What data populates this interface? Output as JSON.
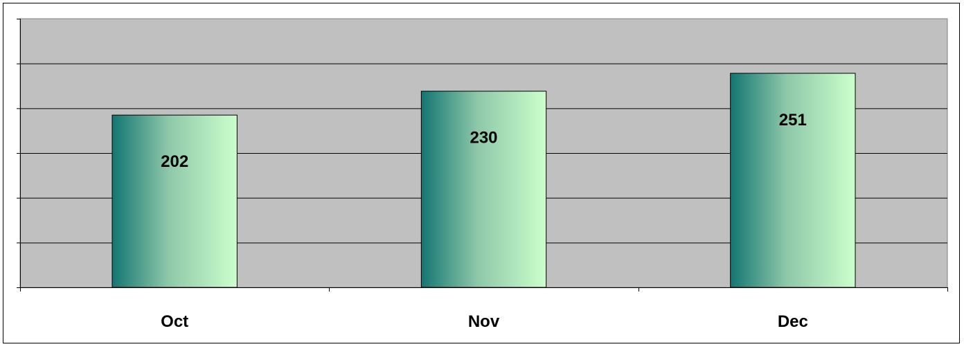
{
  "chart_data": {
    "type": "bar",
    "categories": [
      "Oct",
      "Nov",
      "Dec"
    ],
    "values": [
      202,
      230,
      251
    ],
    "title": "",
    "xlabel": "",
    "ylabel": "",
    "ylim": [
      0,
      315
    ],
    "grid": true,
    "legend": "none",
    "data_labels": true
  },
  "colors": {
    "plot_background": "#c0c0c0",
    "gridline": "#000000",
    "bar_gradient_start": "#137672",
    "bar_gradient_mid": "#8ec8a9",
    "bar_gradient_end": "#ccffcc",
    "bar_outline": "#000000"
  }
}
